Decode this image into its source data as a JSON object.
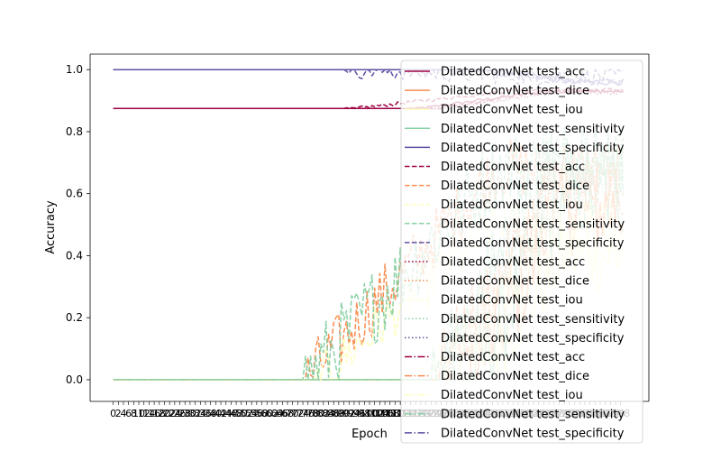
{
  "chart_data": {
    "type": "line",
    "title": "",
    "xlabel": "Epoch",
    "ylabel": "Accuracy",
    "ylim": [
      -0.07,
      1.05
    ],
    "yticks": [
      0.0,
      0.2,
      0.4,
      0.6,
      0.8,
      1.0
    ],
    "ytick_labels": [
      "0.0",
      "0.2",
      "0.4",
      "0.6",
      "0.8",
      "1.0"
    ],
    "epochs": 200,
    "x_tick_labels": [
      "0",
      "2",
      "4",
      "6",
      "8",
      "10",
      "12",
      "14",
      "16",
      "18",
      "20",
      "22",
      "24",
      "26",
      "28",
      "30",
      "32",
      "34",
      "36",
      "38",
      "40",
      "42",
      "44",
      "46",
      "48",
      "50",
      "52",
      "54",
      "56",
      "58",
      "60",
      "62",
      "64",
      "66",
      "68",
      "70",
      "72",
      "74",
      "76",
      "78",
      "80",
      "82",
      "84",
      "86",
      "88",
      "90",
      "92",
      "94",
      "96",
      "98",
      "100",
      "102",
      "104",
      "106",
      "108",
      "110",
      "112",
      "114",
      "116",
      "118",
      "120",
      "122",
      "124",
      "126",
      "128",
      "130",
      "132",
      "134",
      "136",
      "138",
      "140",
      "142",
      "144",
      "146",
      "148",
      "150",
      "152",
      "154",
      "156",
      "158",
      "160",
      "162",
      "164",
      "166",
      "168",
      "170",
      "172",
      "174",
      "176",
      "178",
      "180",
      "182",
      "184",
      "186",
      "188",
      "190",
      "192",
      "194",
      "196",
      "198"
    ],
    "legend_position": "right",
    "grid": false,
    "colors": {
      "acc": "#9e0142",
      "dice": "#f98e52",
      "iou": "#ffffbe",
      "sensitivity": "#89d0a4",
      "specificity": "#5e4fa2"
    },
    "series": [
      {
        "name": "DilatedConvNet test_acc",
        "metric": "acc",
        "style": "solid",
        "start": 0.875,
        "onset": 120,
        "end": 0.93,
        "noise": 0.005
      },
      {
        "name": "DilatedConvNet test_dice",
        "metric": "dice",
        "style": "solid",
        "start": 0.0,
        "onset": 140,
        "end": 0.55,
        "noise": 0.15
      },
      {
        "name": "DilatedConvNet test_iou",
        "metric": "iou",
        "style": "solid",
        "start": 0.0,
        "onset": 140,
        "end": 0.4,
        "noise": 0.12
      },
      {
        "name": "DilatedConvNet test_sensitivity",
        "metric": "sensitivity",
        "style": "solid",
        "start": 0.0,
        "onset": 140,
        "end": 0.6,
        "noise": 0.15
      },
      {
        "name": "DilatedConvNet test_specificity",
        "metric": "specificity",
        "style": "solid",
        "start": 1.0,
        "onset": 150,
        "end": 0.96,
        "noise": 0.01
      },
      {
        "name": "DilatedConvNet test_acc",
        "metric": "acc",
        "style": "dashed",
        "start": 0.875,
        "onset": 95,
        "end": 0.935,
        "noise": 0.006
      },
      {
        "name": "DilatedConvNet test_dice",
        "metric": "dice",
        "style": "dashed",
        "start": 0.0,
        "onset": 75,
        "end": 0.68,
        "noise": 0.1
      },
      {
        "name": "DilatedConvNet test_iou",
        "metric": "iou",
        "style": "dashed",
        "start": 0.0,
        "onset": 80,
        "end": 0.52,
        "noise": 0.08
      },
      {
        "name": "DilatedConvNet test_sensitivity",
        "metric": "sensitivity",
        "style": "dashed",
        "start": 0.0,
        "onset": 75,
        "end": 0.68,
        "noise": 0.13
      },
      {
        "name": "DilatedConvNet test_specificity",
        "metric": "specificity",
        "style": "dashed",
        "start": 1.0,
        "onset": 95,
        "end": 0.98,
        "noise": 0.03
      },
      {
        "name": "DilatedConvNet test_acc",
        "metric": "acc",
        "style": "dotted",
        "start": 0.875,
        "onset": 130,
        "end": 0.925,
        "noise": 0.005
      },
      {
        "name": "DilatedConvNet test_dice",
        "metric": "dice",
        "style": "dotted",
        "start": 0.0,
        "onset": 130,
        "end": 0.62,
        "noise": 0.12
      },
      {
        "name": "DilatedConvNet test_iou",
        "metric": "iou",
        "style": "dotted",
        "start": 0.0,
        "onset": 130,
        "end": 0.45,
        "noise": 0.1
      },
      {
        "name": "DilatedConvNet test_sensitivity",
        "metric": "sensitivity",
        "style": "dotted",
        "start": 0.0,
        "onset": 130,
        "end": 0.7,
        "noise": 0.13
      },
      {
        "name": "DilatedConvNet test_specificity",
        "metric": "specificity",
        "style": "dotted",
        "start": 1.0,
        "onset": 140,
        "end": 0.965,
        "noise": 0.008
      },
      {
        "name": "DilatedConvNet test_acc",
        "metric": "acc",
        "style": "dashdot",
        "start": 0.875,
        "onset": 125,
        "end": 0.93,
        "noise": 0.005
      },
      {
        "name": "DilatedConvNet test_dice",
        "metric": "dice",
        "style": "dashdot",
        "start": 0.0,
        "onset": 125,
        "end": 0.6,
        "noise": 0.12
      },
      {
        "name": "DilatedConvNet test_iou",
        "metric": "iou",
        "style": "dashdot",
        "start": 0.0,
        "onset": 125,
        "end": 0.45,
        "noise": 0.1
      },
      {
        "name": "DilatedConvNet test_sensitivity",
        "metric": "sensitivity",
        "style": "dashdot",
        "start": 0.0,
        "onset": 125,
        "end": 0.72,
        "noise": 0.12
      },
      {
        "name": "DilatedConvNet test_specificity",
        "metric": "specificity",
        "style": "dashdot",
        "start": 1.0,
        "onset": 140,
        "end": 0.96,
        "noise": 0.01
      }
    ]
  }
}
